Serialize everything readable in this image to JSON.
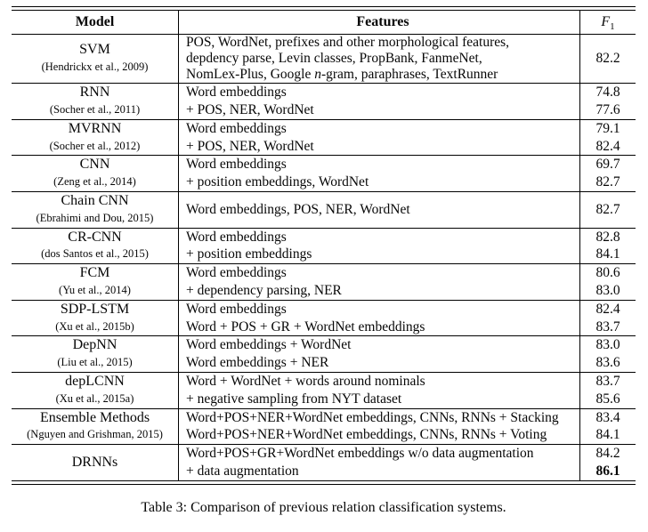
{
  "page": {
    "caption": "Table 3: Comparison of previous relation classification systems."
  },
  "table": {
    "headers": {
      "model": "Model",
      "features": "Features",
      "f1_letter": "F",
      "f1_subscript": "1"
    },
    "groups": [
      {
        "model": "SVM",
        "citation": "(Hendrickx et al., 2009)",
        "feature_lines": [
          "POS, WordNet, prefixes and other morphological features,",
          "depdency parse, Levin classes, PropBank, FanmeNet,"
        ],
        "feature_line3": {
          "pre": "NomLex-Plus, Google ",
          "italic": "n",
          "post": "-gram, paraphrases, TextRunner"
        },
        "f1": "82.2"
      },
      {
        "model": "RNN",
        "citation": "(Socher et al., 2011)",
        "rows": [
          {
            "feature": "Word embeddings",
            "f1": "74.8"
          },
          {
            "feature": "+ POS, NER, WordNet",
            "f1": "77.6"
          }
        ]
      },
      {
        "model": "MVRNN",
        "citation": "(Socher et al., 2012)",
        "rows": [
          {
            "feature": "Word embeddings",
            "f1": "79.1"
          },
          {
            "feature": "+ POS, NER, WordNet",
            "f1": "82.4"
          }
        ]
      },
      {
        "model": "CNN",
        "citation": "(Zeng et al., 2014)",
        "rows": [
          {
            "feature": "Word embeddings",
            "f1": "69.7"
          },
          {
            "feature": "+ position embeddings, WordNet",
            "f1": "82.7"
          }
        ]
      },
      {
        "model": "Chain CNN",
        "citation": "(Ebrahimi and Dou, 2015)",
        "rows": [
          {
            "feature": "Word embeddings, POS, NER, WordNet",
            "f1": "82.7"
          }
        ]
      },
      {
        "model": "CR-CNN",
        "citation": "(dos Santos et al., 2015)",
        "rows": [
          {
            "feature": "Word embeddings",
            "f1": "82.8"
          },
          {
            "feature": "+ position embeddings",
            "f1": "84.1"
          }
        ]
      },
      {
        "model": "FCM",
        "citation": "(Yu et al., 2014)",
        "rows": [
          {
            "feature": "Word embeddings",
            "f1": "80.6"
          },
          {
            "feature": "+ dependency parsing, NER",
            "f1": "83.0"
          }
        ]
      },
      {
        "model": "SDP-LSTM",
        "citation": "(Xu et al., 2015b)",
        "rows": [
          {
            "feature": "Word embeddings",
            "f1": "82.4"
          },
          {
            "feature": "Word + POS + GR + WordNet embeddings",
            "f1": "83.7"
          }
        ]
      },
      {
        "model": "DepNN",
        "citation": "(Liu et al., 2015)",
        "rows": [
          {
            "feature": "Word embeddings + WordNet",
            "f1": "83.0"
          },
          {
            "feature": "Word embeddings + NER",
            "f1": "83.6"
          }
        ]
      },
      {
        "model": "depLCNN",
        "citation": "(Xu et al., 2015a)",
        "rows": [
          {
            "feature": "Word + WordNet + words around nominals",
            "f1": "83.7"
          },
          {
            "feature": "+ negative sampling from NYT dataset",
            "f1": "85.6"
          }
        ]
      },
      {
        "model": "Ensemble Methods",
        "citation": "(Nguyen and Grishman, 2015)",
        "rows": [
          {
            "feature": "Word+POS+NER+WordNet embeddings, CNNs, RNNs + Stacking",
            "f1": "83.4"
          },
          {
            "feature": "Word+POS+NER+WordNet embeddings, CNNs, RNNs + Voting",
            "f1": "84.1"
          }
        ]
      },
      {
        "model": "DRNNs",
        "rows": [
          {
            "feature": "Word+POS+GR+WordNet embeddings w/o data augmentation",
            "f1": "84.2"
          },
          {
            "feature": "+ data augmentation",
            "f1": "86.1"
          }
        ]
      }
    ]
  },
  "chart_data": {
    "type": "table",
    "title": "Table 3: Comparison of previous relation classification systems.",
    "columns": [
      "Model",
      "Features",
      "F1"
    ],
    "rows": [
      [
        "SVM (Hendrickx et al., 2009)",
        "POS, WordNet, prefixes and other morphological features, depdency parse, Levin classes, PropBank, FanmeNet, NomLex-Plus, Google n-gram, paraphrases, TextRunner",
        82.2
      ],
      [
        "RNN (Socher et al., 2011)",
        "Word embeddings",
        74.8
      ],
      [
        "RNN (Socher et al., 2011)",
        "+ POS, NER, WordNet",
        77.6
      ],
      [
        "MVRNN (Socher et al., 2012)",
        "Word embeddings",
        79.1
      ],
      [
        "MVRNN (Socher et al., 2012)",
        "+ POS, NER, WordNet",
        82.4
      ],
      [
        "CNN (Zeng et al., 2014)",
        "Word embeddings",
        69.7
      ],
      [
        "CNN (Zeng et al., 2014)",
        "+ position embeddings, WordNet",
        82.7
      ],
      [
        "Chain CNN (Ebrahimi and Dou, 2015)",
        "Word embeddings, POS, NER, WordNet",
        82.7
      ],
      [
        "CR-CNN (dos Santos et al., 2015)",
        "Word embeddings",
        82.8
      ],
      [
        "CR-CNN (dos Santos et al., 2015)",
        "+ position embeddings",
        84.1
      ],
      [
        "FCM (Yu et al., 2014)",
        "Word embeddings",
        80.6
      ],
      [
        "FCM (Yu et al., 2014)",
        "+ dependency parsing, NER",
        83.0
      ],
      [
        "SDP-LSTM (Xu et al., 2015b)",
        "Word embeddings",
        82.4
      ],
      [
        "SDP-LSTM (Xu et al., 2015b)",
        "Word + POS + GR + WordNet embeddings",
        83.7
      ],
      [
        "DepNN (Liu et al., 2015)",
        "Word embeddings + WordNet",
        83.0
      ],
      [
        "DepNN (Liu et al., 2015)",
        "Word embeddings + NER",
        83.6
      ],
      [
        "depLCNN (Xu et al., 2015a)",
        "Word + WordNet + words around nominals",
        83.7
      ],
      [
        "depLCNN (Xu et al., 2015a)",
        "+ negative sampling from NYT dataset",
        85.6
      ],
      [
        "Ensemble Methods (Nguyen and Grishman, 2015)",
        "Word+POS+NER+WordNet embeddings, CNNs, RNNs + Stacking",
        83.4
      ],
      [
        "Ensemble Methods (Nguyen and Grishman, 2015)",
        "Word+POS+NER+WordNet embeddings, CNNs, RNNs + Voting",
        84.1
      ],
      [
        "DRNNs",
        "Word+POS+GR+WordNet embeddings w/o data augmentation",
        84.2
      ],
      [
        "DRNNs",
        "+ data augmentation",
        86.1
      ]
    ]
  }
}
